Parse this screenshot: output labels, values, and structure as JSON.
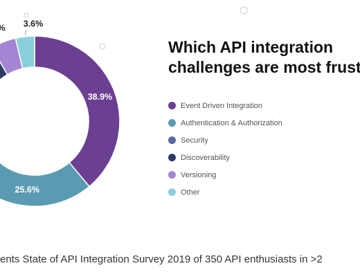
{
  "chart_data": {
    "type": "pie",
    "style": "donut",
    "title_lines": [
      "Which API integration",
      "challenges are most frustr"
    ],
    "categories": [
      "Event Driven Integration",
      "Authentication & Authorization",
      "Security",
      "Discoverability",
      "Versioning",
      "Other"
    ],
    "values": [
      38.9,
      25.6,
      23.5,
      3.6,
      4.8,
      3.6
    ],
    "value_labels": [
      "38.9%",
      "25.6%",
      "",
      "",
      "%",
      "3.6%"
    ],
    "colors": [
      "#6b3f92",
      "#5b9bb2",
      "#5b69a1",
      "#2e3b68",
      "#a484d3",
      "#8ccfdc"
    ],
    "legend_position": "right"
  },
  "caption": "ents State of API Integration Survey 2019 of 350 API enthusiasts in >2"
}
